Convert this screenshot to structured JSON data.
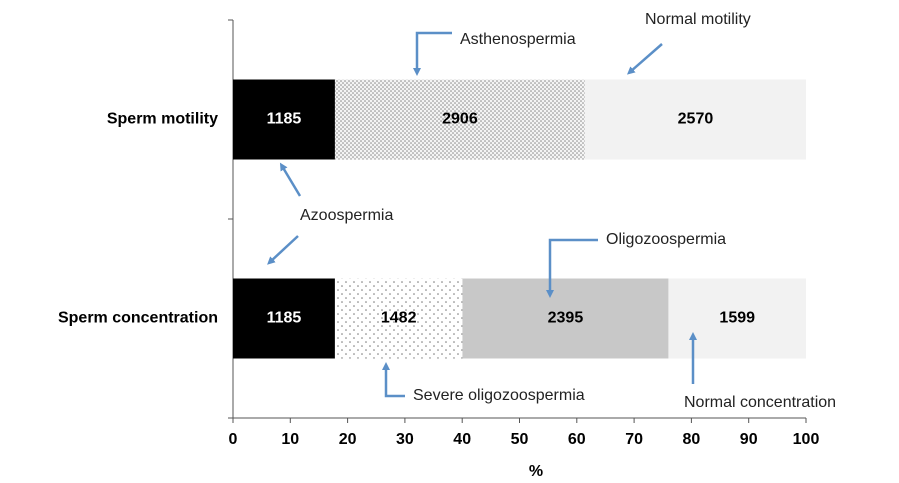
{
  "chart_data": {
    "type": "bar",
    "orientation": "horizontal",
    "stacking": "percent",
    "categories": [
      "Sperm motility",
      "Sperm concentration"
    ],
    "series": [
      {
        "name": "Azoospermia",
        "color": "#000000",
        "pattern": null,
        "values": [
          1185,
          1185
        ]
      },
      {
        "name": "Asthenospermia",
        "color": "#f4f4f4",
        "pattern": "dots-dense",
        "values": [
          2906,
          null
        ]
      },
      {
        "name": "Normal motility",
        "color": "#f2f2f2",
        "pattern": null,
        "values": [
          2570,
          null
        ]
      },
      {
        "name": "Severe oligozoospermia",
        "color": "#ffffff",
        "pattern": "dots-sparse",
        "values": [
          null,
          1482
        ]
      },
      {
        "name": "Oligozoospermia",
        "color": "#c8c8c8",
        "pattern": null,
        "values": [
          null,
          2395
        ]
      },
      {
        "name": "Normal concentration",
        "color": "#f2f2f2",
        "pattern": null,
        "values": [
          null,
          1599
        ]
      }
    ],
    "xlabel": "%",
    "xlim": [
      0,
      100
    ],
    "xticks": [
      0,
      10,
      20,
      30,
      40,
      50,
      60,
      70,
      80,
      90,
      100
    ]
  }
}
